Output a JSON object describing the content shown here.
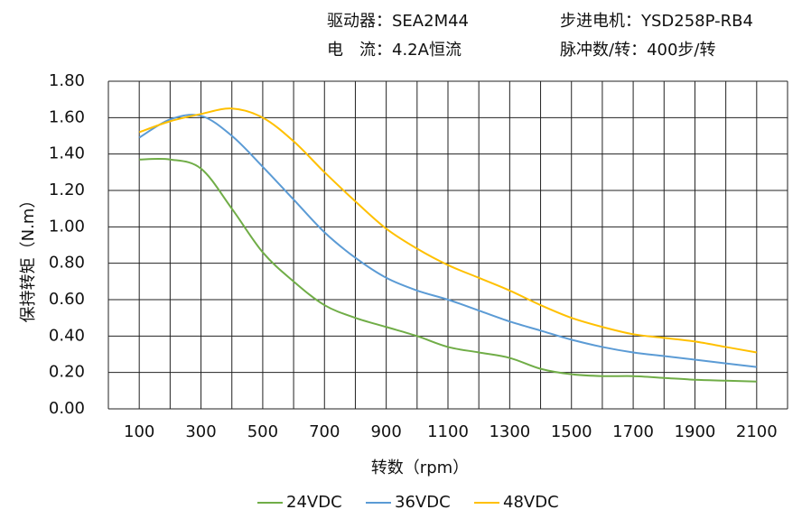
{
  "chart_data": {
    "type": "line",
    "header": [
      "驱动器：SEA2M44",
      "电　流：4.2A恒流",
      "步进电机：YSD258P-RB4",
      "脉冲数/转：400步/转"
    ],
    "xlabel": "转数（rpm）",
    "ylabel": "保持转矩（N.m）",
    "x": [
      100,
      200,
      300,
      400,
      500,
      600,
      700,
      800,
      900,
      1000,
      1100,
      1200,
      1300,
      1400,
      1500,
      1600,
      1700,
      1800,
      1900,
      2000,
      2100
    ],
    "series": [
      {
        "name": "24VDC",
        "color": "#70ad47",
        "values": [
          1.37,
          1.37,
          1.32,
          1.1,
          0.86,
          0.7,
          0.57,
          0.5,
          0.45,
          0.4,
          0.34,
          0.31,
          0.28,
          0.22,
          0.19,
          0.18,
          0.18,
          0.17,
          0.16,
          0.155,
          0.15
        ]
      },
      {
        "name": "36VDC",
        "color": "#5b9bd5",
        "values": [
          1.49,
          1.59,
          1.61,
          1.5,
          1.33,
          1.15,
          0.97,
          0.83,
          0.72,
          0.65,
          0.6,
          0.54,
          0.48,
          0.43,
          0.38,
          0.34,
          0.31,
          0.29,
          0.27,
          0.25,
          0.23
        ]
      },
      {
        "name": "48VDC",
        "color": "#ffc000",
        "values": [
          1.52,
          1.58,
          1.62,
          1.65,
          1.6,
          1.47,
          1.3,
          1.14,
          0.99,
          0.88,
          0.79,
          0.72,
          0.65,
          0.57,
          0.5,
          0.45,
          0.41,
          0.39,
          0.37,
          0.34,
          0.31
        ]
      }
    ],
    "xlim": [
      0,
      2200
    ],
    "xticks": [
      100,
      300,
      500,
      700,
      900,
      1100,
      1300,
      1500,
      1700,
      1900,
      2100
    ],
    "ylim": [
      0,
      1.8
    ],
    "yticks": [
      {
        "value": 0,
        "label": "0.00"
      },
      {
        "value": 0.2,
        "label": "0.20"
      },
      {
        "value": 0.4,
        "label": "0.40"
      },
      {
        "value": 0.6,
        "label": "0.60"
      },
      {
        "value": 0.8,
        "label": "0.80"
      },
      {
        "value": 1,
        "label": "1.00"
      },
      {
        "value": 1.2,
        "label": "1.20"
      },
      {
        "value": 1.4,
        "label": "1.40"
      },
      {
        "value": 1.6,
        "label": "1.60"
      },
      {
        "value": 1.8,
        "label": "1.80"
      }
    ],
    "grid": true
  }
}
